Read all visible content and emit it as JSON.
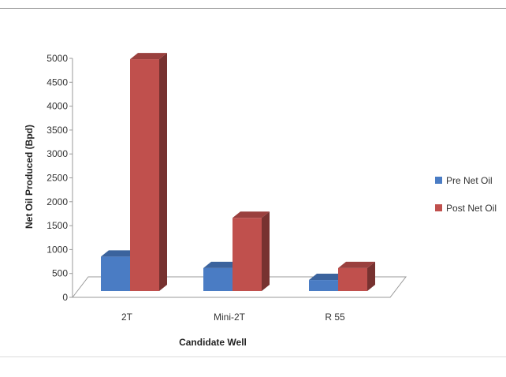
{
  "chart_data": {
    "type": "bar",
    "categories": [
      "2T",
      "Mini-2T",
      "R 55"
    ],
    "series": [
      {
        "name": "Pre Net Oil",
        "values": [
          720,
          480,
          230
        ],
        "color": "#4a7cc4"
      },
      {
        "name": "Post Net Oil",
        "values": [
          4850,
          1530,
          480
        ],
        "color": "#c0504d"
      }
    ],
    "title": "",
    "xlabel": "Candidate Well",
    "ylabel": "Net Oil Produced (Bpd)",
    "ylim": [
      0,
      5000
    ],
    "yticks": [
      "0",
      "500",
      "1000",
      "1500",
      "2000",
      "2500",
      "3000",
      "3500",
      "4000",
      "4500",
      "5000"
    ],
    "grid": false,
    "legend_position": "right",
    "three_d": true
  }
}
